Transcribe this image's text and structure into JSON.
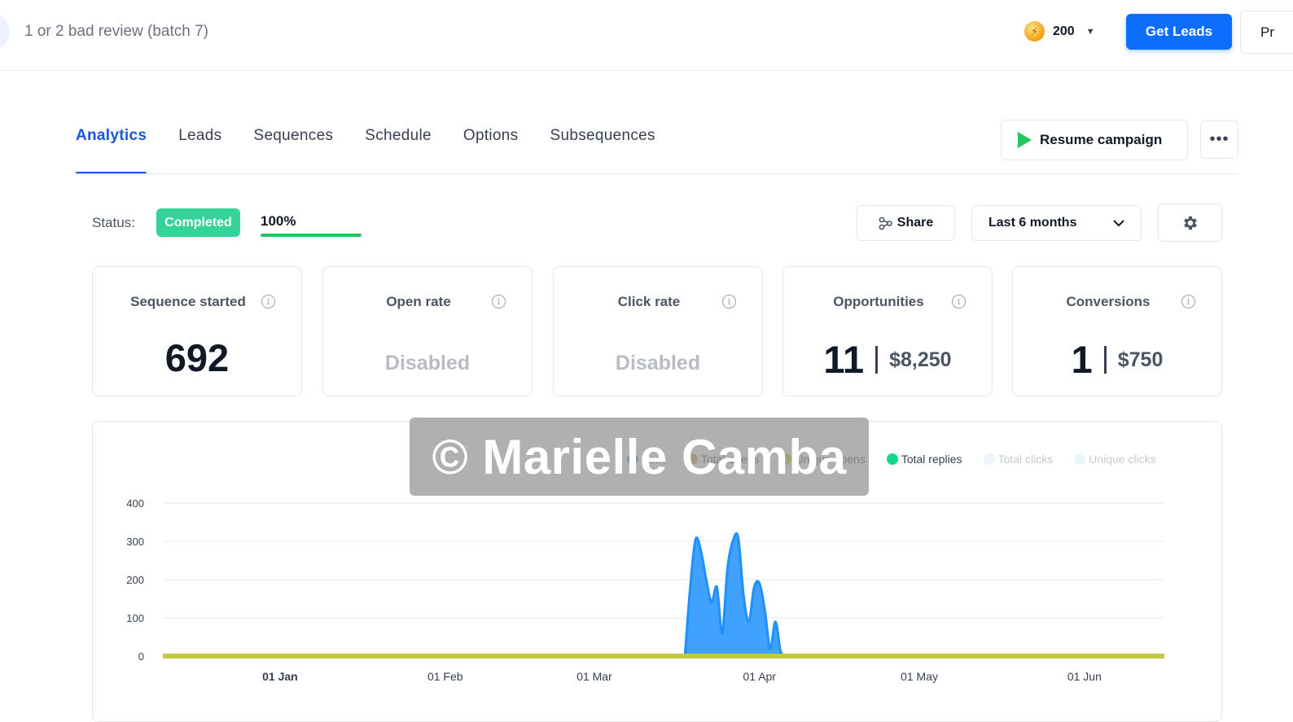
{
  "header": {
    "campaign_title": "1 or 2 bad review (batch 7)",
    "credits": "200",
    "get_leads_label": "Get Leads",
    "profile_label": "Pr"
  },
  "tabs": [
    {
      "label": "Analytics",
      "active": true
    },
    {
      "label": "Leads",
      "active": false
    },
    {
      "label": "Sequences",
      "active": false
    },
    {
      "label": "Schedule",
      "active": false
    },
    {
      "label": "Options",
      "active": false
    },
    {
      "label": "Subsequences",
      "active": false
    }
  ],
  "actions": {
    "resume_label": "Resume campaign"
  },
  "status": {
    "label": "Status:",
    "badge": "Completed",
    "progress_text": "100%",
    "progress_fraction": 1.0
  },
  "toolbar": {
    "share_label": "Share",
    "range_label": "Last 6 months"
  },
  "metrics": [
    {
      "title": "Sequence started",
      "value": "692"
    },
    {
      "title": "Open rate",
      "value": "Disabled"
    },
    {
      "title": "Click rate",
      "value": "Disabled"
    },
    {
      "title": "Opportunities",
      "value": "11",
      "amount": "$8,250"
    },
    {
      "title": "Conversions",
      "value": "1",
      "amount": "$750"
    }
  ],
  "legend": [
    {
      "label": "Sent",
      "color": "#1e90ff"
    },
    {
      "label": "Total opens",
      "color": "#c8a13a"
    },
    {
      "label": "Unique opens",
      "color": "#a3d12b"
    },
    {
      "label": "Total replies",
      "color": "#10d98a"
    },
    {
      "label": "Total clicks",
      "color": "#eef4fb"
    },
    {
      "label": "Unique clicks",
      "color": "#e8f6f8"
    }
  ],
  "watermark": "© Marielle Camba",
  "chart_data": {
    "type": "area",
    "x_tick_labels": [
      "01 Jan",
      "01 Feb",
      "01 Mar",
      "01 Apr",
      "01 May",
      "01 Jun"
    ],
    "y_ticks": [
      0,
      100,
      200,
      300,
      400
    ],
    "ylim": [
      0,
      400
    ],
    "xlim": [
      "2024-12-10",
      "2025-06-16"
    ],
    "grid": true,
    "legend_position": "top-right",
    "series": [
      {
        "name": "Sent",
        "color": "#1e90ff",
        "points": [
          [
            "2025-03-18",
            0
          ],
          [
            "2025-03-19",
            180
          ],
          [
            "2025-03-20",
            305
          ],
          [
            "2025-03-21",
            275
          ],
          [
            "2025-03-22",
            200
          ],
          [
            "2025-03-23",
            140
          ],
          [
            "2025-03-24",
            180
          ],
          [
            "2025-03-25",
            60
          ],
          [
            "2025-03-26",
            230
          ],
          [
            "2025-03-27",
            300
          ],
          [
            "2025-03-28",
            310
          ],
          [
            "2025-03-29",
            160
          ],
          [
            "2025-03-30",
            90
          ],
          [
            "2025-03-31",
            180
          ],
          [
            "2025-04-01",
            190
          ],
          [
            "2025-04-02",
            120
          ],
          [
            "2025-04-03",
            20
          ],
          [
            "2025-04-04",
            90
          ],
          [
            "2025-04-05",
            10
          ],
          [
            "2025-04-06",
            0
          ]
        ]
      },
      {
        "name": "Total replies",
        "color": "#10d98a",
        "points": [
          [
            "2025-03-18",
            0
          ],
          [
            "2025-03-20",
            2
          ],
          [
            "2025-03-24",
            3
          ],
          [
            "2025-03-28",
            2
          ],
          [
            "2025-04-02",
            1
          ],
          [
            "2025-04-06",
            0
          ]
        ]
      },
      {
        "name": "Unique opens",
        "color": "#c3c93a",
        "points": [
          [
            "2024-12-10",
            0
          ],
          [
            "2025-06-16",
            0
          ]
        ]
      }
    ]
  }
}
